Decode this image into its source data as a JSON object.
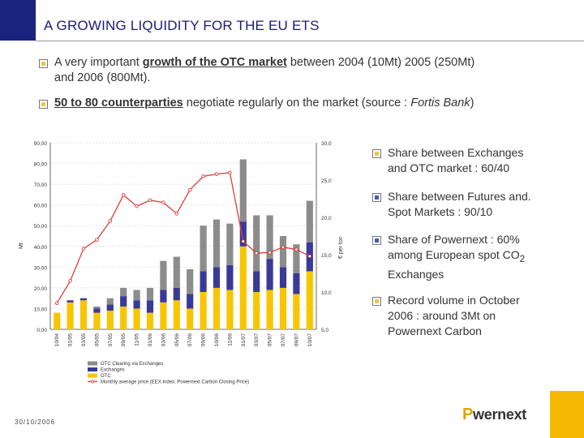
{
  "title": "A GROWING LIQUIDITY FOR THE EU ETS",
  "bullets": {
    "b1_pre": "A very important ",
    "b1_u": "growth of the OTC market",
    "b1_post": " between 2004 (10Mt) 2005 (250Mt)",
    "b1_line2": "and 2006 (800Mt).",
    "b2_u": "50 to 80 counterparties",
    "b2_post": " negotiate regularly on the market (source : ",
    "b2_src": "Fortis Bank",
    "b2_end": ")"
  },
  "right_bullets": [
    {
      "line1": "Share between Exchanges",
      "line2": "and OTC market : 60/40"
    },
    {
      "line1": "Share between Futures and.",
      "line2": "Spot Markets : 90/10"
    },
    {
      "line1": "Share of Powernext : 60%",
      "line2": "among European spot CO",
      "sub": "2",
      "line3": "Exchanges"
    },
    {
      "line1": "Record volume in October",
      "line2": "2006 : around 3Mt on",
      "line3": "Powernext Carbon"
    }
  ],
  "date": "30/10/2006",
  "logo": {
    "p": "P",
    "rest": "wernext"
  },
  "colors": {
    "otc": "#f7c600",
    "exchanges": "#3a3a96",
    "clearing": "#8c8c8c",
    "price": "#e03b3b",
    "title": "#1b1b7a"
  },
  "chart_data": {
    "type": "bar",
    "stacked": true,
    "ylabel": "Mt",
    "y2label": "€ per ton",
    "ylim": [
      0,
      90
    ],
    "y2lim": [
      5,
      30
    ],
    "y_ticks": [
      "0,00",
      "10,00",
      "20,00",
      "30,00",
      "40,00",
      "50,00",
      "60,00",
      "70,00",
      "80,00",
      "90,00"
    ],
    "y2_ticks": [
      "5,0",
      "10,0",
      "15,0",
      "20,0",
      "25,0",
      "30,0"
    ],
    "categories": [
      "Oct/04",
      "Jan/05",
      "Mar/05",
      "May/05",
      "Jul/05",
      "Sep/05",
      "Nov/05",
      "Jan/06",
      "Mar/06",
      "May/06",
      "Jul/06",
      "Sep/06",
      "Oct/06",
      "Nov/06",
      "Jan/07",
      "Mar/07",
      "May/07",
      "Jul/07",
      "Sep/07",
      "Oct/07"
    ],
    "x_labels": [
      "10/04",
      "01/05",
      "03/05",
      "05/05",
      "07/05",
      "09/05",
      "11/05",
      "01/06",
      "03/06",
      "05/06",
      "07/06",
      "09/06",
      "10/06",
      "11/06",
      "01/07",
      "03/07",
      "05/07",
      "07/07",
      "09/07",
      "10/07"
    ],
    "series": [
      {
        "name": "OTC Clearing via Exchanges",
        "values": [
          0,
          0,
          0,
          1,
          3,
          4,
          5,
          6,
          14,
          15,
          12,
          22,
          23,
          20,
          30,
          27,
          21,
          15,
          14,
          20
        ]
      },
      {
        "name": "Exchanges",
        "values": [
          0,
          1,
          1,
          2,
          3,
          5,
          4,
          6,
          6,
          6,
          7,
          10,
          10,
          12,
          12,
          10,
          15,
          10,
          10,
          14
        ]
      },
      {
        "name": "OTC",
        "values": [
          8,
          13,
          14,
          8,
          9,
          11,
          10,
          8,
          13,
          14,
          10,
          18,
          20,
          19,
          40,
          18,
          19,
          20,
          17,
          28
        ]
      },
      {
        "name": "Monthly average price (EEX Index, Powernext Carbon Closing Price)",
        "axis": "secondary",
        "type": "line",
        "values": [
          8.5,
          11.5,
          15.8,
          17,
          19.5,
          23,
          21.5,
          22.3,
          22,
          20.5,
          23.7,
          25.5,
          25.8,
          26,
          16.8,
          15.2,
          15.3,
          16,
          15.7,
          14.8
        ]
      }
    ],
    "legend_position": "bottom"
  }
}
